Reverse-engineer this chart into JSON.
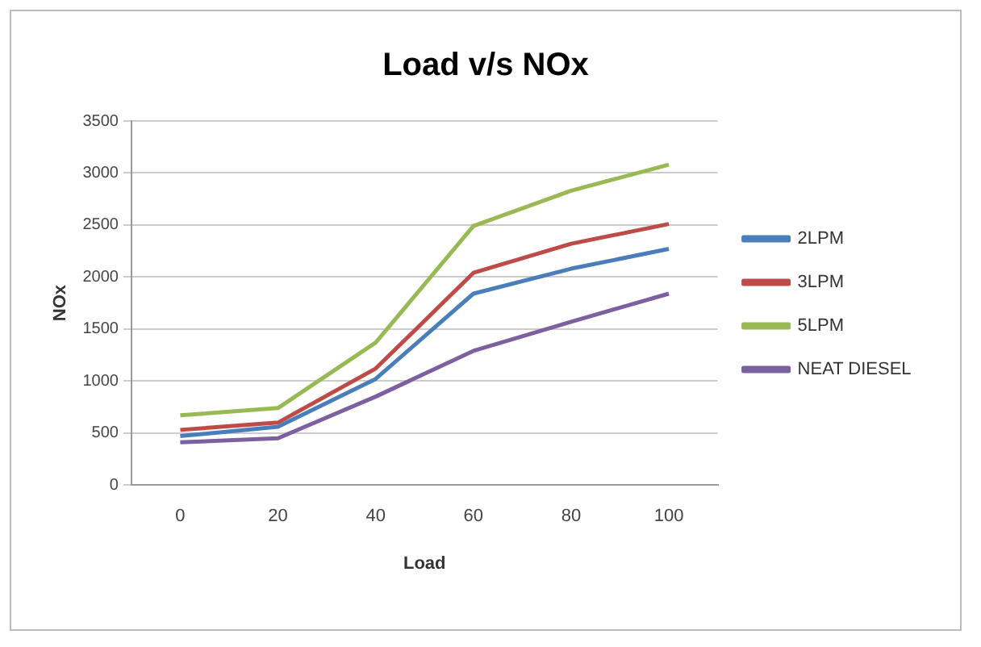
{
  "chart_data": {
    "type": "line",
    "title": "Load v/s NOx",
    "xlabel": "Load",
    "ylabel": "NOx",
    "categories": [
      "0",
      "20",
      "40",
      "60",
      "80",
      "100"
    ],
    "series": [
      {
        "name": "2LPM",
        "color": "#4a7ebb",
        "values": [
          470,
          560,
          1020,
          1840,
          2080,
          2270
        ]
      },
      {
        "name": "3LPM",
        "color": "#be4b48",
        "values": [
          530,
          600,
          1120,
          2040,
          2320,
          2510
        ]
      },
      {
        "name": "5LPM",
        "color": "#98b954",
        "values": [
          670,
          740,
          1370,
          2490,
          2830,
          3080
        ]
      },
      {
        "name": "NEAT DIESEL",
        "color": "#7d60a0",
        "values": [
          410,
          450,
          850,
          1290,
          1570,
          1840
        ]
      }
    ],
    "ylim": [
      0,
      3500
    ],
    "yticks": [
      0,
      500,
      1000,
      1500,
      2000,
      2500,
      3000,
      3500
    ],
    "grid": "y",
    "legend": "right",
    "marker": "none",
    "line_style": "solid"
  }
}
